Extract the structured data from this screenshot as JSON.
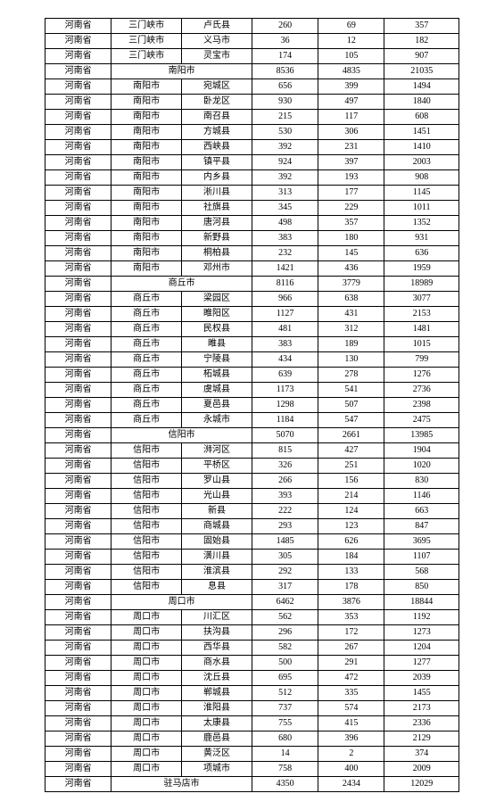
{
  "background_color": "#ffffff",
  "border_color": "#000000",
  "font_family": "SimSun",
  "font_size": 10,
  "rows": [
    {
      "cells": [
        "河南省",
        "三门峡市",
        "卢氏县",
        "260",
        "69",
        "357"
      ]
    },
    {
      "cells": [
        "河南省",
        "三门峡市",
        "义马市",
        "36",
        "12",
        "182"
      ]
    },
    {
      "cells": [
        "河南省",
        "三门峡市",
        "灵宝市",
        "174",
        "105",
        "907"
      ]
    },
    {
      "cells": [
        "河南省",
        "南阳市",
        "",
        "8536",
        "4835",
        "21035"
      ],
      "mergeCity": true
    },
    {
      "cells": [
        "河南省",
        "南阳市",
        "宛城区",
        "656",
        "399",
        "1494"
      ]
    },
    {
      "cells": [
        "河南省",
        "南阳市",
        "卧龙区",
        "930",
        "497",
        "1840"
      ]
    },
    {
      "cells": [
        "河南省",
        "南阳市",
        "南召县",
        "215",
        "117",
        "608"
      ]
    },
    {
      "cells": [
        "河南省",
        "南阳市",
        "方城县",
        "530",
        "306",
        "1451"
      ]
    },
    {
      "cells": [
        "河南省",
        "南阳市",
        "西峡县",
        "392",
        "231",
        "1410"
      ]
    },
    {
      "cells": [
        "河南省",
        "南阳市",
        "镇平县",
        "924",
        "397",
        "2003"
      ]
    },
    {
      "cells": [
        "河南省",
        "南阳市",
        "内乡县",
        "392",
        "193",
        "908"
      ]
    },
    {
      "cells": [
        "河南省",
        "南阳市",
        "淅川县",
        "313",
        "177",
        "1145"
      ]
    },
    {
      "cells": [
        "河南省",
        "南阳市",
        "社旗县",
        "345",
        "229",
        "1011"
      ]
    },
    {
      "cells": [
        "河南省",
        "南阳市",
        "唐河县",
        "498",
        "357",
        "1352"
      ]
    },
    {
      "cells": [
        "河南省",
        "南阳市",
        "新野县",
        "383",
        "180",
        "931"
      ]
    },
    {
      "cells": [
        "河南省",
        "南阳市",
        "桐柏县",
        "232",
        "145",
        "636"
      ]
    },
    {
      "cells": [
        "河南省",
        "南阳市",
        "邓州市",
        "1421",
        "436",
        "1959"
      ]
    },
    {
      "cells": [
        "河南省",
        "商丘市",
        "",
        "8116",
        "3779",
        "18989"
      ],
      "mergeCity": true
    },
    {
      "cells": [
        "河南省",
        "商丘市",
        "梁园区",
        "966",
        "638",
        "3077"
      ]
    },
    {
      "cells": [
        "河南省",
        "商丘市",
        "睢阳区",
        "1127",
        "431",
        "2153"
      ]
    },
    {
      "cells": [
        "河南省",
        "商丘市",
        "民权县",
        "481",
        "312",
        "1481"
      ]
    },
    {
      "cells": [
        "河南省",
        "商丘市",
        "睢县",
        "383",
        "189",
        "1015"
      ]
    },
    {
      "cells": [
        "河南省",
        "商丘市",
        "宁陵县",
        "434",
        "130",
        "799"
      ]
    },
    {
      "cells": [
        "河南省",
        "商丘市",
        "柘城县",
        "639",
        "278",
        "1276"
      ]
    },
    {
      "cells": [
        "河南省",
        "商丘市",
        "虞城县",
        "1173",
        "541",
        "2736"
      ]
    },
    {
      "cells": [
        "河南省",
        "商丘市",
        "夏邑县",
        "1298",
        "507",
        "2398"
      ]
    },
    {
      "cells": [
        "河南省",
        "商丘市",
        "永城市",
        "1184",
        "547",
        "2475"
      ]
    },
    {
      "cells": [
        "河南省",
        "信阳市",
        "",
        "5070",
        "2661",
        "13985"
      ],
      "mergeCity": true
    },
    {
      "cells": [
        "河南省",
        "信阳市",
        "浉河区",
        "815",
        "427",
        "1904"
      ]
    },
    {
      "cells": [
        "河南省",
        "信阳市",
        "平桥区",
        "326",
        "251",
        "1020"
      ]
    },
    {
      "cells": [
        "河南省",
        "信阳市",
        "罗山县",
        "266",
        "156",
        "830"
      ]
    },
    {
      "cells": [
        "河南省",
        "信阳市",
        "光山县",
        "393",
        "214",
        "1146"
      ]
    },
    {
      "cells": [
        "河南省",
        "信阳市",
        "新县",
        "222",
        "124",
        "663"
      ]
    },
    {
      "cells": [
        "河南省",
        "信阳市",
        "商城县",
        "293",
        "123",
        "847"
      ]
    },
    {
      "cells": [
        "河南省",
        "信阳市",
        "固始县",
        "1485",
        "626",
        "3695"
      ]
    },
    {
      "cells": [
        "河南省",
        "信阳市",
        "潢川县",
        "305",
        "184",
        "1107"
      ]
    },
    {
      "cells": [
        "河南省",
        "信阳市",
        "淮滨县",
        "292",
        "133",
        "568"
      ]
    },
    {
      "cells": [
        "河南省",
        "信阳市",
        "息县",
        "317",
        "178",
        "850"
      ]
    },
    {
      "cells": [
        "河南省",
        "周口市",
        "",
        "6462",
        "3876",
        "18844"
      ],
      "mergeCity": true
    },
    {
      "cells": [
        "河南省",
        "周口市",
        "川汇区",
        "562",
        "353",
        "1192"
      ]
    },
    {
      "cells": [
        "河南省",
        "周口市",
        "扶沟县",
        "296",
        "172",
        "1273"
      ]
    },
    {
      "cells": [
        "河南省",
        "周口市",
        "西华县",
        "582",
        "267",
        "1204"
      ]
    },
    {
      "cells": [
        "河南省",
        "周口市",
        "商水县",
        "500",
        "291",
        "1277"
      ]
    },
    {
      "cells": [
        "河南省",
        "周口市",
        "沈丘县",
        "695",
        "472",
        "2039"
      ]
    },
    {
      "cells": [
        "河南省",
        "周口市",
        "郸城县",
        "512",
        "335",
        "1455"
      ]
    },
    {
      "cells": [
        "河南省",
        "周口市",
        "淮阳县",
        "737",
        "574",
        "2173"
      ]
    },
    {
      "cells": [
        "河南省",
        "周口市",
        "太康县",
        "755",
        "415",
        "2336"
      ]
    },
    {
      "cells": [
        "河南省",
        "周口市",
        "鹿邑县",
        "680",
        "396",
        "2129"
      ]
    },
    {
      "cells": [
        "河南省",
        "周口市",
        "黄泛区",
        "14",
        "2",
        "374"
      ]
    },
    {
      "cells": [
        "河南省",
        "周口市",
        "项城市",
        "758",
        "400",
        "2009"
      ]
    },
    {
      "cells": [
        "河南省",
        "驻马店市",
        "",
        "4350",
        "2434",
        "12029"
      ],
      "mergeCity": true
    }
  ]
}
